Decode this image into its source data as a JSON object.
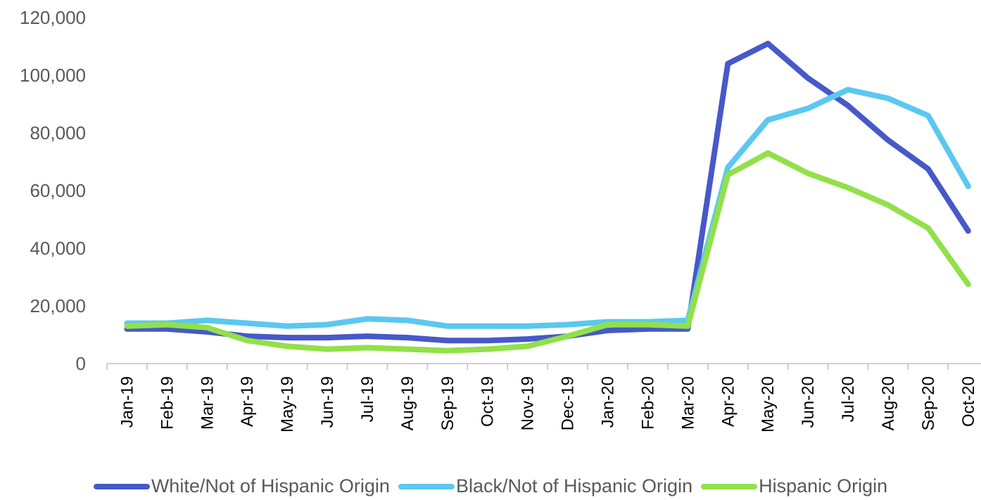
{
  "chart_data": {
    "type": "line",
    "title": "",
    "xlabel": "",
    "ylabel": "",
    "ylim": [
      0,
      120000
    ],
    "yticks": [
      0,
      20000,
      40000,
      60000,
      80000,
      100000,
      120000
    ],
    "ytick_labels": [
      "0",
      "20,000",
      "40,000",
      "60,000",
      "80,000",
      "100,000",
      "120,000"
    ],
    "grid": false,
    "legend_position": "bottom",
    "categories": [
      "Jan-19",
      "Feb-19",
      "Mar-19",
      "Apr-19",
      "May-19",
      "Jun-19",
      "Jul-19",
      "Aug-19",
      "Sep-19",
      "Oct-19",
      "Nov-19",
      "Dec-19",
      "Jan-20",
      "Feb-20",
      "Mar-20",
      "Apr-20",
      "May-20",
      "Jun-20",
      "Jul-20",
      "Aug-20",
      "Sep-20",
      "Oct-20"
    ],
    "series": [
      {
        "name": "White/Not of Hispanic Origin",
        "color": "#4659c8",
        "values": [
          12000,
          12000,
          11000,
          9500,
          9000,
          9000,
          9500,
          9000,
          8000,
          8000,
          8500,
          9500,
          11500,
          12000,
          12000,
          104000,
          111000,
          99000,
          89500,
          77500,
          67500,
          46000
        ]
      },
      {
        "name": "Black/Not of Hispanic Origin",
        "color": "#5bc8f0",
        "values": [
          14000,
          14000,
          15000,
          14000,
          13000,
          13500,
          15500,
          15000,
          13000,
          13000,
          13000,
          13500,
          14500,
          14500,
          15000,
          68000,
          84500,
          88500,
          95000,
          92000,
          86000,
          61500
        ]
      },
      {
        "name": "Hispanic Origin",
        "color": "#92e04a",
        "values": [
          13000,
          13500,
          12500,
          8000,
          6000,
          5000,
          5500,
          5000,
          4500,
          5000,
          6000,
          9500,
          13500,
          13500,
          13000,
          65500,
          73000,
          66000,
          61000,
          55000,
          47000,
          27500
        ]
      }
    ]
  }
}
